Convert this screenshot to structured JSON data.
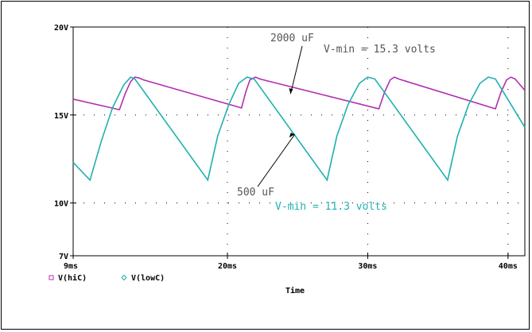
{
  "chart_data": {
    "type": "line",
    "xlabel": "Time",
    "ylabel": "",
    "x_unit": "ms",
    "xlim": [
      9,
      41.2
    ],
    "ylim": [
      7,
      20
    ],
    "grid": true,
    "x_ticks": [
      {
        "value": 9,
        "label": "9ms"
      },
      {
        "value": 20,
        "label": "20ms"
      },
      {
        "value": 30,
        "label": "30ms"
      },
      {
        "value": 40,
        "label": "40ms"
      }
    ],
    "y_ticks": [
      {
        "value": 7,
        "label": "7V"
      },
      {
        "value": 10,
        "label": "10V"
      },
      {
        "value": 15,
        "label": "15V"
      },
      {
        "value": 20,
        "label": "20V"
      }
    ],
    "series": [
      {
        "name": "V(hiC)",
        "color": "#b030b0",
        "marker": "square",
        "x": [
          9.0,
          12.3,
          12.7,
          13.1,
          13.4,
          13.7,
          14.0,
          21.0,
          21.3,
          21.6,
          22.0,
          22.3,
          30.8,
          31.2,
          31.6,
          31.9,
          32.2,
          39.1,
          39.5,
          39.9,
          40.2,
          40.5,
          41.2
        ],
        "values": [
          15.9,
          15.3,
          16.2,
          16.9,
          17.15,
          17.1,
          17.0,
          15.4,
          16.3,
          17.0,
          17.15,
          17.05,
          15.35,
          16.3,
          17.0,
          17.15,
          17.05,
          15.35,
          16.3,
          17.0,
          17.15,
          17.05,
          16.4
        ]
      },
      {
        "name": "V(lowC)",
        "color": "#20b0b0",
        "marker": "diamond",
        "x": [
          9.0,
          10.2,
          11.0,
          11.8,
          12.6,
          13.1,
          13.4,
          18.6,
          19.3,
          20.1,
          20.8,
          21.4,
          21.9,
          27.1,
          27.8,
          28.6,
          29.4,
          30.0,
          30.5,
          35.7,
          36.4,
          37.2,
          38.0,
          38.6,
          39.1,
          41.2
        ],
        "values": [
          12.3,
          11.3,
          13.5,
          15.4,
          16.7,
          17.15,
          17.05,
          11.3,
          13.8,
          15.6,
          16.8,
          17.15,
          17.05,
          11.3,
          13.8,
          15.6,
          16.8,
          17.15,
          17.05,
          11.3,
          13.8,
          15.6,
          16.8,
          17.15,
          17.05,
          14.3
        ]
      }
    ],
    "annotations": [
      {
        "text": "2000 uF",
        "color": "#555555",
        "points_to": {
          "x": 24.5,
          "y": 16.2
        }
      },
      {
        "text": "V-min = 15.3 volts",
        "color": "#555555"
      },
      {
        "text": "500 uF",
        "color": "#555555",
        "points_to": {
          "x": 24.8,
          "y": 13.9
        }
      },
      {
        "text": "V-min = 11.3 volts",
        "color": "#20b0b0"
      }
    ]
  }
}
